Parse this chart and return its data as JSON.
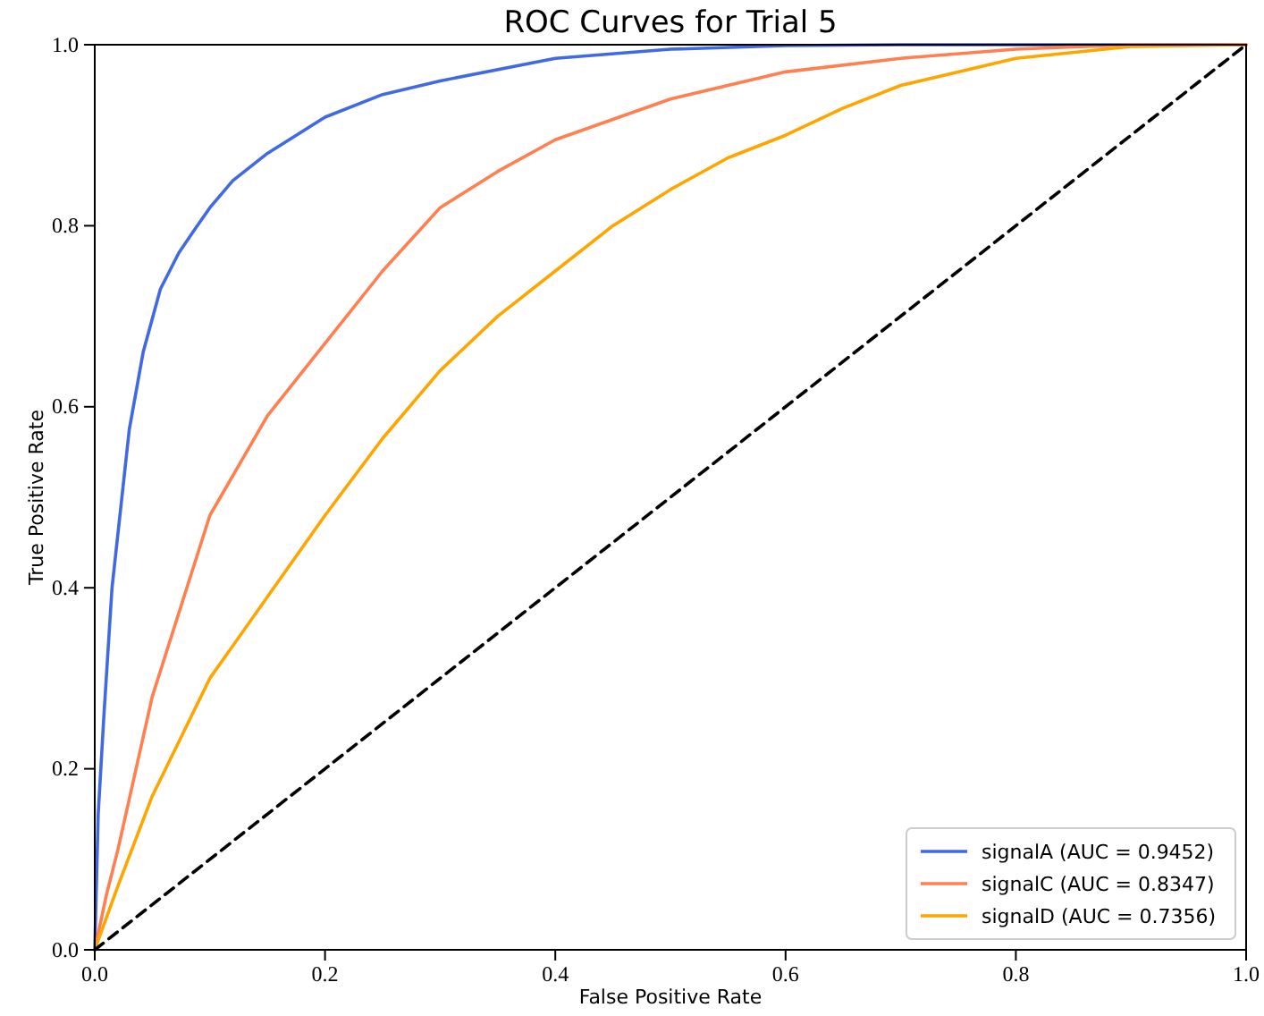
{
  "chart_data": {
    "type": "line",
    "title": "ROC Curves for Trial 5",
    "xlabel": "False Positive Rate",
    "ylabel": "True Positive Rate",
    "xlim": [
      0,
      1
    ],
    "ylim": [
      0,
      1
    ],
    "xticks": [
      {
        "value": 0,
        "label": "0.0"
      },
      0.2,
      0.4,
      0.6,
      0.8,
      {
        "value": 1,
        "label": "1.0"
      }
    ],
    "yticks": [
      {
        "value": 0,
        "label": "0.0"
      },
      0.2,
      0.4,
      0.6,
      0.8,
      {
        "value": 1,
        "label": "1.0"
      }
    ],
    "grid": false,
    "legend": "bottom right",
    "marker": "none",
    "series": [
      {
        "name": "signalA (AUC = 0.9452)",
        "color": "#4169e1",
        "line_style": "solid",
        "x": [
          0,
          0.003,
          0.008,
          0.015,
          0.03,
          0.042,
          0.057,
          0.073,
          0.089,
          0.1,
          0.12,
          0.15,
          0.2,
          0.25,
          0.3,
          0.4,
          0.5,
          0.6,
          0.7,
          0.8,
          1
        ],
        "values": [
          0,
          0.15,
          0.26,
          0.4,
          0.575,
          0.66,
          0.73,
          0.77,
          0.8,
          0.82,
          0.85,
          0.88,
          0.92,
          0.945,
          0.96,
          0.985,
          0.995,
          0.999,
          1,
          1,
          1
        ]
      },
      {
        "name": "signalC (AUC = 0.8347)",
        "color": "#ff7f50",
        "line_style": "solid",
        "x": [
          0,
          0.01,
          0.02,
          0.05,
          0.1,
          0.15,
          0.2,
          0.25,
          0.3,
          0.35,
          0.4,
          0.5,
          0.6,
          0.7,
          0.8,
          0.9,
          1
        ],
        "values": [
          0,
          0.06,
          0.11,
          0.28,
          0.48,
          0.59,
          0.67,
          0.75,
          0.82,
          0.86,
          0.895,
          0.94,
          0.97,
          0.985,
          0.995,
          1,
          1
        ]
      },
      {
        "name": "signalD (AUC = 0.7356)",
        "color": "#ffa500",
        "line_style": "solid",
        "x": [
          0,
          0.02,
          0.05,
          0.1,
          0.15,
          0.2,
          0.25,
          0.3,
          0.35,
          0.4,
          0.45,
          0.5,
          0.55,
          0.6,
          0.65,
          0.7,
          0.8,
          0.9,
          1
        ],
        "values": [
          0,
          0.07,
          0.17,
          0.3,
          0.39,
          0.48,
          0.565,
          0.64,
          0.7,
          0.75,
          0.8,
          0.84,
          0.875,
          0.9,
          0.93,
          0.955,
          0.985,
          0.998,
          1
        ]
      },
      {
        "color": "#000000",
        "line_style": "dashed",
        "x": [
          0,
          1
        ],
        "values": [
          0,
          1
        ]
      }
    ]
  }
}
